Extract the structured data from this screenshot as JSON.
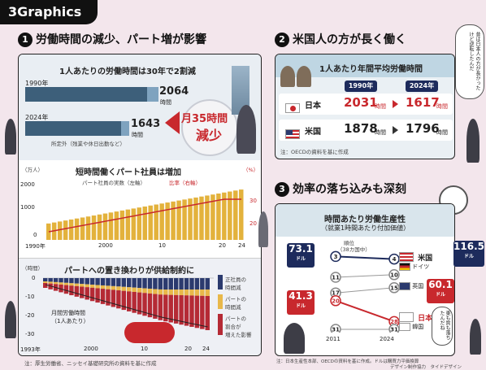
{
  "brand": "3Graphics",
  "sections": {
    "s1": {
      "num": "1",
      "title": "労働時間の減少、パート増が影響"
    },
    "s2": {
      "num": "2",
      "title": "米国人の方が長く働く"
    },
    "s3": {
      "num": "3",
      "title": "効率の落ち込みも深刻"
    }
  },
  "p1a": {
    "headline": "1人あたりの労働時間は30年で2割減",
    "year1": "1990年",
    "value1": "2064",
    "unit1": "時間",
    "year2": "2024年",
    "value2": "1643",
    "unit2": "時間",
    "note": "所定外（残業や休日出勤など）",
    "callout_line1": "月35時間",
    "callout_line2": "減少"
  },
  "p1b": {
    "headline": "短時間働くパート社員は増加",
    "left_unit": "（万人）",
    "right_unit": "（%）",
    "legend_bar": "パート社員の実数",
    "legend_bar_axis": "（左軸）",
    "legend_line": "比率",
    "legend_line_axis": "（右軸）",
    "yleft_ticks": [
      "2000",
      "1000",
      "0"
    ],
    "yright_ticks": [
      "30",
      "20"
    ],
    "x_ticks": [
      "1990年",
      "2000",
      "10",
      "20",
      "24"
    ]
  },
  "p1c": {
    "headline": "パートへの置き換わりが供給制約に",
    "unit": "（時間）",
    "y_ticks": [
      "0",
      "-10",
      "-20",
      "-30"
    ],
    "x_ticks": [
      "1993年",
      "2000",
      "10",
      "20",
      "24"
    ],
    "series_label_line1": "月間労働時間",
    "series_label_line2": "（1人あたり）",
    "legend": [
      {
        "line1": "正社員の",
        "line2": "時間減",
        "color": "#2b3a6e"
      },
      {
        "line1": "パートの",
        "line2": "時間減",
        "color": "#e8b84a"
      },
      {
        "line1": "パートの",
        "line2": "割合が",
        "line3": "増えた影響",
        "color": "#b52a35"
      }
    ]
  },
  "footnote1": "注：厚生労働省、ニッセイ基礎研究所の資料を基に作成",
  "p2": {
    "headline": "1人あたり年間平均労働時間",
    "col1": "1990年",
    "col2": "2024年",
    "rows": [
      {
        "country": "日本",
        "v1": "2031",
        "v2": "1617",
        "unit": "時間"
      },
      {
        "country": "米国",
        "v1": "1878",
        "v2": "1796",
        "unit": "時間"
      }
    ],
    "note": "注：OECDの資料を基に作成",
    "bubble": "昔は日本人の方が長かったけど逆転したんだ"
  },
  "p3": {
    "headline1": "時間あたり労働生産性",
    "headline2": "（就業1時間あたり付加価値）",
    "rank_label1": "順位",
    "rank_label2": "（38カ国中）",
    "x_ticks": [
      "2011",
      "2024"
    ],
    "us_left_value": "73.1",
    "us_left_unit": "ドル",
    "us_right_value": "116.5",
    "us_right_unit": "ドル",
    "jp_left_value": "41.3",
    "jp_left_unit": "ドル",
    "jp_right_value": "60.1",
    "jp_right_unit": "ドル",
    "countries": [
      "米国",
      "ドイツ",
      "英国",
      "日本",
      "韓国"
    ],
    "ranks_2011": [
      "3",
      "11",
      "17",
      "20",
      "31"
    ],
    "ranks_2024": [
      "4",
      "10",
      "15",
      "28",
      "31"
    ],
    "bubble": "東も質も落ちたんだね",
    "note": "注：日本生産性本部、OECDの資料を基に作成。ドルは購買力平価換算",
    "credit": "デザイン制作協力　タイドデザイン"
  }
}
